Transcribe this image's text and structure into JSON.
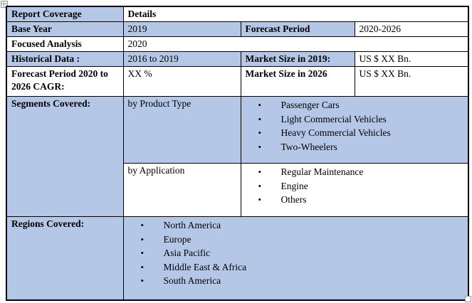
{
  "colors": {
    "band_blue": "#b4c7e7",
    "border": "#000000"
  },
  "table": {
    "report_coverage_label": "Report Coverage",
    "details_label": "Details",
    "base_year_label": "Base Year",
    "base_year_value": "2019",
    "forecast_period_label": "Forecast Period",
    "forecast_period_value": "2020-2026",
    "focused_analysis_label": "Focused Analysis",
    "focused_analysis_value": "2020",
    "historical_data_label": "Historical Data :",
    "historical_data_value": "2016 to 2019",
    "market_size_2019_label": "Market Size in 2019:",
    "market_size_2019_value": "US $ XX Bn.",
    "cagr_label": "Forecast Period 2020 to 2026 CAGR:",
    "cagr_value": "XX %",
    "market_size_2026_label": "Market Size in 2026",
    "market_size_2026_value": "US $ XX Bn.",
    "segments_label": "Segments Covered:",
    "by_product_type_label": "by Product Type",
    "by_application_label": "by Application",
    "regions_label": "Regions Covered:"
  },
  "lists": {
    "product_types": [
      "Passenger Cars",
      "Light Commercial Vehicles",
      "Heavy Commercial Vehicles",
      "Two-Wheelers"
    ],
    "applications": [
      "Regular Maintenance",
      "Engine",
      "Others"
    ],
    "regions": [
      "North America",
      "Europe",
      "Asia Pacific",
      "Middle East & Africa",
      "South America"
    ]
  }
}
